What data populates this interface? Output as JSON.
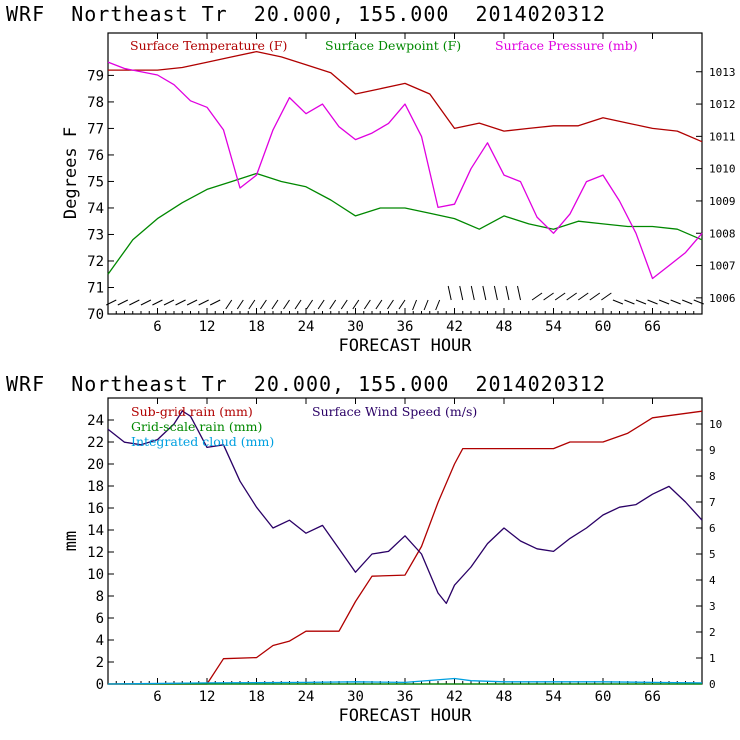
{
  "page": {
    "top_title": "WRF  Northeast Tr  20.000, 155.000  2014020312",
    "bottom_title": "WRF  Northeast Tr  20.000, 155.000  2014020312"
  },
  "chart_data": [
    {
      "type": "line",
      "title": "WRF  Northeast Tr  20.000, 155.000  2014020312",
      "xlabel": "FORECAST HOUR",
      "ylabel": "Degrees F",
      "xlim": [
        0,
        72
      ],
      "xticks": [
        6,
        12,
        18,
        24,
        30,
        36,
        42,
        48,
        54,
        60,
        66
      ],
      "ylim": [
        70,
        80.6
      ],
      "yticks": [
        70,
        71,
        72,
        73,
        74,
        75,
        76,
        77,
        78,
        79
      ],
      "y2lim": [
        1005.5,
        1014.2
      ],
      "y2ticks": [
        1006,
        1007,
        1008,
        1009,
        1010,
        1011,
        1012,
        1013
      ],
      "series": [
        {
          "name": "Surface Temperature (F)",
          "axis": "left",
          "color": "#b00000",
          "x": [
            0,
            3,
            6,
            9,
            12,
            15,
            18,
            21,
            24,
            27,
            30,
            33,
            36,
            39,
            42,
            45,
            48,
            51,
            54,
            57,
            60,
            63,
            66,
            69,
            72
          ],
          "y": [
            79.2,
            79.2,
            79.2,
            79.3,
            79.5,
            79.7,
            79.9,
            79.7,
            79.4,
            79.1,
            78.3,
            78.5,
            78.7,
            78.3,
            77.0,
            77.2,
            76.9,
            77.0,
            77.1,
            77.1,
            77.4,
            77.2,
            77.0,
            76.9,
            76.5
          ]
        },
        {
          "name": "Surface Dewpoint (F)",
          "axis": "left",
          "color": "#008800",
          "x": [
            0,
            3,
            6,
            9,
            12,
            15,
            18,
            21,
            24,
            27,
            30,
            33,
            36,
            39,
            42,
            45,
            48,
            51,
            54,
            57,
            60,
            63,
            66,
            69,
            72
          ],
          "y": [
            71.5,
            72.8,
            73.6,
            74.2,
            74.7,
            75.0,
            75.3,
            75.0,
            74.8,
            74.3,
            73.7,
            74.0,
            74.0,
            73.8,
            73.6,
            73.2,
            73.7,
            73.4,
            73.2,
            73.5,
            73.4,
            73.3,
            73.3,
            73.2,
            72.8
          ]
        },
        {
          "name": "Surface Pressure (mb)",
          "axis": "right",
          "color": "#e000e0",
          "x": [
            0,
            2,
            4,
            6,
            8,
            10,
            12,
            14,
            16,
            18,
            20,
            22,
            24,
            26,
            28,
            30,
            32,
            34,
            36,
            38,
            40,
            42,
            44,
            46,
            48,
            50,
            52,
            54,
            56,
            58,
            60,
            62,
            64,
            66,
            68,
            70,
            72
          ],
          "y": [
            1013.3,
            1013.1,
            1013.0,
            1012.9,
            1012.6,
            1012.1,
            1011.9,
            1011.2,
            1009.4,
            1009.8,
            1011.2,
            1012.2,
            1011.7,
            1012.0,
            1011.3,
            1010.9,
            1011.1,
            1011.4,
            1012.0,
            1011.0,
            1008.8,
            1008.9,
            1010.0,
            1010.8,
            1009.8,
            1009.6,
            1008.5,
            1008.0,
            1008.6,
            1009.6,
            1009.8,
            1009.0,
            1008.0,
            1006.6,
            1007.0,
            1007.4,
            1008.0
          ]
        }
      ],
      "legend": [
        "Surface Temperature (F)",
        "Surface Dewpoint (F)",
        "Surface Pressure (mb)"
      ],
      "legend_position": "top",
      "wind_barbs": "bottom row of wind barbs along the x axis"
    },
    {
      "type": "line",
      "title": "WRF  Northeast Tr  20.000, 155.000  2014020312",
      "xlabel": "FORECAST HOUR",
      "ylabel": "mm",
      "xlim": [
        0,
        72
      ],
      "xticks": [
        6,
        12,
        18,
        24,
        30,
        36,
        42,
        48,
        54,
        60,
        66
      ],
      "ylim": [
        0,
        26
      ],
      "yticks": [
        0,
        2,
        4,
        6,
        8,
        10,
        12,
        14,
        16,
        18,
        20,
        22,
        24
      ],
      "y2lim": [
        0,
        11
      ],
      "y2ticks": [
        0,
        1,
        2,
        3,
        4,
        5,
        6,
        7,
        8,
        9,
        10
      ],
      "series": [
        {
          "name": "Sub-grid rain (mm)",
          "axis": "left",
          "color": "#b00000",
          "x": [
            0,
            12,
            14,
            18,
            20,
            22,
            24,
            28,
            30,
            32,
            36,
            38,
            40,
            42,
            43,
            54,
            56,
            60,
            63,
            66,
            72
          ],
          "y": [
            0,
            0,
            2.3,
            2.4,
            3.5,
            3.9,
            4.8,
            4.8,
            7.5,
            9.8,
            9.9,
            12.5,
            16.5,
            20.0,
            21.4,
            21.4,
            22.0,
            22.0,
            22.8,
            24.2,
            24.8
          ]
        },
        {
          "name": "Grid-scale rain (mm)",
          "axis": "left",
          "color": "#008800",
          "x": [
            0,
            72
          ],
          "y": [
            0,
            0
          ]
        },
        {
          "name": "Integrated cloud (mm)",
          "axis": "left",
          "color": "#00a0e0",
          "x": [
            0,
            12,
            24,
            30,
            36,
            42,
            44,
            48,
            54,
            60,
            66,
            72
          ],
          "y": [
            0,
            0.1,
            0.15,
            0.2,
            0.15,
            0.5,
            0.3,
            0.2,
            0.2,
            0.2,
            0.15,
            0.1
          ]
        },
        {
          "name": "Surface Wind Speed (m/s)",
          "axis": "right",
          "color": "#2a0066",
          "x": [
            0,
            2,
            4,
            6,
            8,
            9,
            10,
            12,
            14,
            16,
            18,
            20,
            22,
            24,
            26,
            28,
            30,
            32,
            34,
            36,
            38,
            40,
            41,
            42,
            44,
            46,
            48,
            50,
            52,
            54,
            56,
            58,
            60,
            62,
            64,
            66,
            68,
            70,
            72
          ],
          "y": [
            9.8,
            9.3,
            9.2,
            9.4,
            10.0,
            10.5,
            10.3,
            9.1,
            9.2,
            7.8,
            6.8,
            6.0,
            6.3,
            5.8,
            6.1,
            5.2,
            4.3,
            5.0,
            5.1,
            5.7,
            5.0,
            3.5,
            3.1,
            3.8,
            4.5,
            5.4,
            6.0,
            5.5,
            5.2,
            5.1,
            5.6,
            6.0,
            6.5,
            6.8,
            6.9,
            7.3,
            7.6,
            7.0,
            6.3
          ]
        }
      ],
      "legend": [
        "Sub-grid rain (mm)",
        "Surface Wind Speed (m/s)",
        "Grid-scale rain (mm)",
        "Integrated cloud (mm)"
      ],
      "legend_position": "top-left"
    }
  ]
}
